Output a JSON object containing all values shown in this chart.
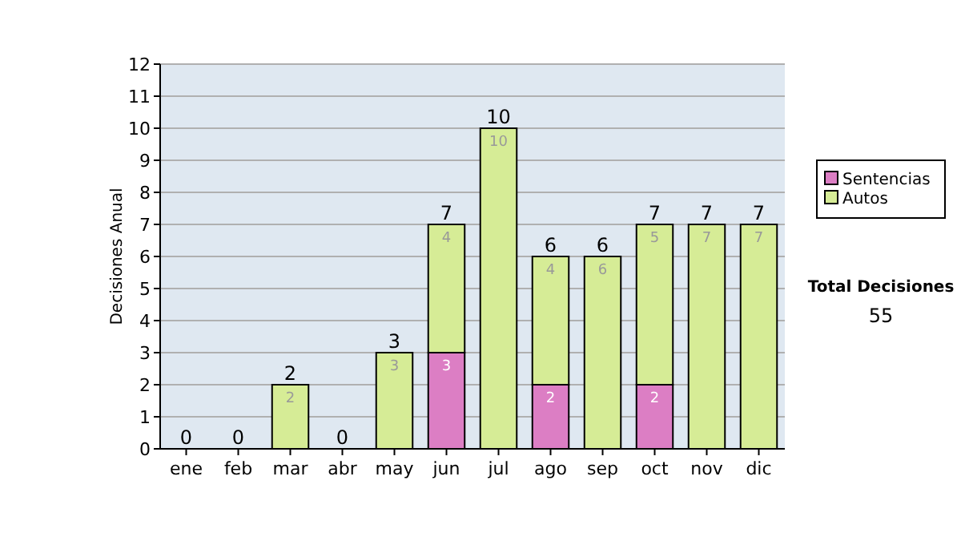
{
  "chart_data": {
    "type": "bar",
    "stacked": true,
    "ylabel": "Decisiones Anual",
    "categories": [
      "ene",
      "feb",
      "mar",
      "abr",
      "may",
      "jun",
      "jul",
      "ago",
      "sep",
      "oct",
      "nov",
      "dic"
    ],
    "series": [
      {
        "name": "Sentencias",
        "color": "#dc7ec4",
        "values": [
          0,
          0,
          0,
          0,
          0,
          3,
          0,
          2,
          0,
          2,
          0,
          0
        ],
        "value_labels": [
          null,
          null,
          null,
          null,
          null,
          "3",
          null,
          "2",
          null,
          "2",
          null,
          null
        ]
      },
      {
        "name": "Autos",
        "color": "#d6ec96",
        "values": [
          0,
          0,
          2,
          0,
          3,
          4,
          10,
          4,
          6,
          5,
          7,
          7
        ],
        "value_labels": [
          null,
          null,
          "2",
          null,
          "3",
          "4",
          "10",
          "4",
          "6",
          "5",
          "7",
          "7"
        ]
      }
    ],
    "totals": [
      "0",
      "0",
      "2",
      "0",
      "3",
      "7",
      "10",
      "6",
      "6",
      "7",
      "7",
      "7"
    ],
    "ylim": [
      0,
      12
    ],
    "yticks": [
      0,
      1,
      2,
      3,
      4,
      5,
      6,
      7,
      8,
      9,
      10,
      11,
      12
    ],
    "grid": "y",
    "legend": "right",
    "annotations": [
      "Total Decisiones",
      "55"
    ]
  }
}
